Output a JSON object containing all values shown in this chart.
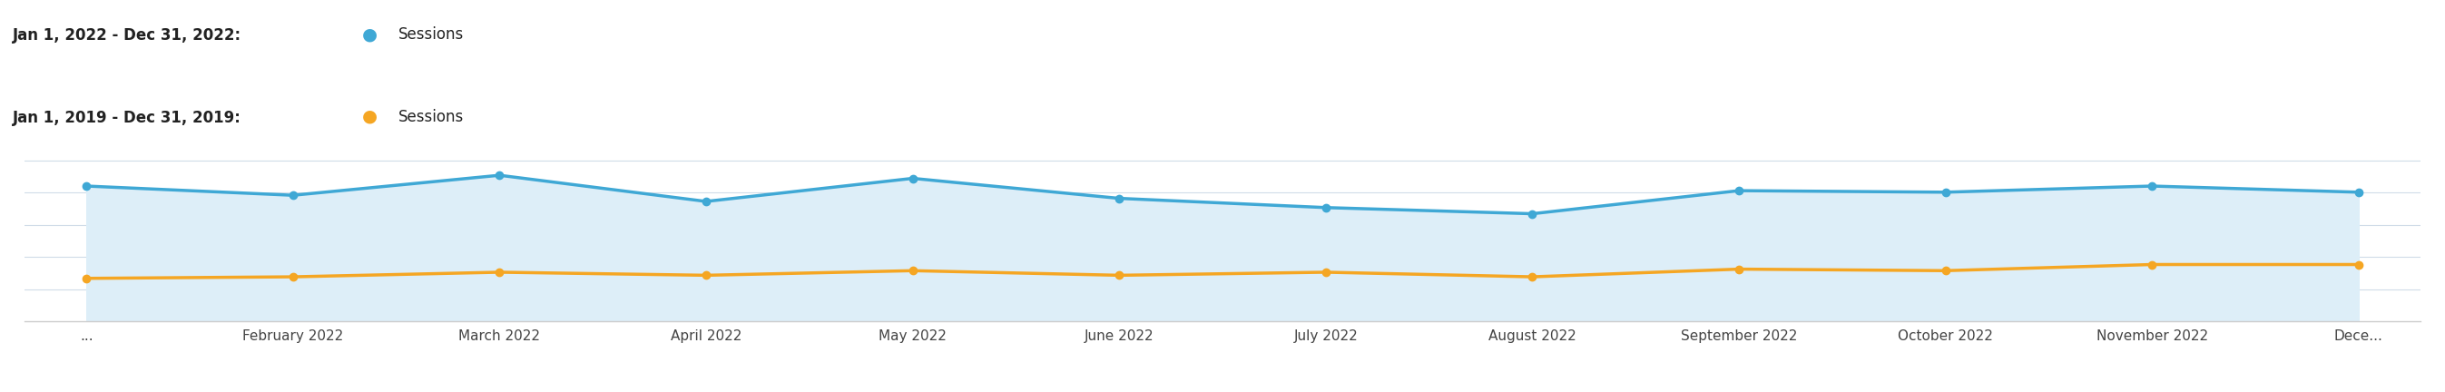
{
  "x_labels": [
    "...",
    "February 2022",
    "March 2022",
    "April 2022",
    "May 2022",
    "June 2022",
    "July 2022",
    "August 2022",
    "September 2022",
    "October 2022",
    "November 2022",
    "Dece..."
  ],
  "blue_values": [
    88,
    82,
    95,
    78,
    93,
    80,
    74,
    70,
    85,
    84,
    88,
    84
  ],
  "orange_values": [
    28,
    29,
    32,
    30,
    33,
    30,
    32,
    29,
    34,
    33,
    37,
    37
  ],
  "blue_color": "#3fa8d5",
  "orange_color": "#f5a623",
  "blue_fill_color": "#ddeef8",
  "background_color": "#ffffff",
  "grid_color": "#d0dce8",
  "legend_line1": "Jan 1, 2022 - Dec 31, 2022:",
  "legend_line2": "Jan 1, 2019 - Dec 31, 2019:",
  "legend_label": "Sessions",
  "axis_line_color": "#cccccc",
  "legend_fontsize": 12,
  "tick_fontsize": 11
}
